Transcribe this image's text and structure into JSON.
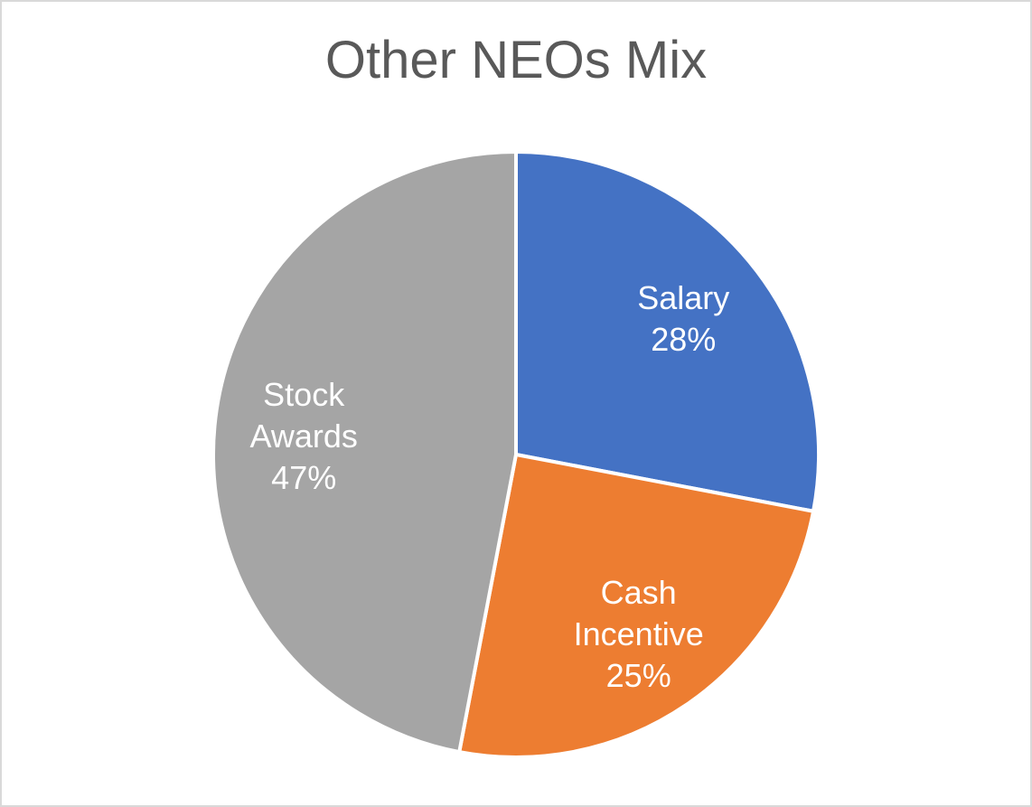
{
  "chart_data": {
    "type": "pie",
    "title": "Other NEOs Mix",
    "categories": [
      "Salary",
      "Cash Incentive",
      "Stock Awards"
    ],
    "values": [
      28,
      25,
      47
    ],
    "value_labels": [
      "28%",
      "25%",
      "47%"
    ],
    "colors": [
      "#4472c4",
      "#ed7d31",
      "#a5a5a5"
    ]
  }
}
